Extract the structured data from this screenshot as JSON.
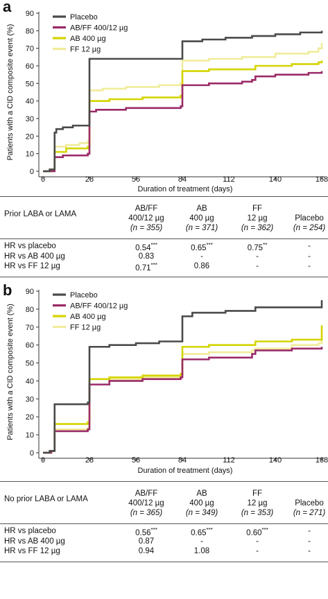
{
  "chart_data": [
    {
      "type": "line",
      "panel": "a",
      "xlabel": "Duration of treatment (days)",
      "ylabel": "Patients with a CID composite event (%)",
      "xlim": [
        0,
        168
      ],
      "ylim": [
        0,
        90
      ],
      "xticks": [
        0,
        28,
        56,
        84,
        112,
        140,
        168
      ],
      "yticks": [
        0,
        10,
        20,
        30,
        40,
        50,
        60,
        70,
        80,
        90
      ],
      "legend_position": "top-left",
      "series": [
        {
          "name": "Placebo",
          "color": "#4a4a4a",
          "points": [
            [
              0,
              0
            ],
            [
              4,
              1
            ],
            [
              6,
              1
            ],
            [
              7,
              22
            ],
            [
              8,
              24
            ],
            [
              12,
              25
            ],
            [
              18,
              26
            ],
            [
              27,
              26
            ],
            [
              28,
              64
            ],
            [
              40,
              64
            ],
            [
              60,
              64
            ],
            [
              83,
              64
            ],
            [
              84,
              74
            ],
            [
              96,
              75
            ],
            [
              110,
              76
            ],
            [
              126,
              77
            ],
            [
              140,
              78
            ],
            [
              155,
              79
            ],
            [
              166,
              79
            ],
            [
              168,
              80
            ]
          ]
        },
        {
          "name": "AB/FF 400/12 µg",
          "color": "#9b2a68",
          "points": [
            [
              0,
              0
            ],
            [
              5,
              0
            ],
            [
              7,
              8
            ],
            [
              12,
              9
            ],
            [
              20,
              9
            ],
            [
              27,
              10
            ],
            [
              28,
              34
            ],
            [
              32,
              35
            ],
            [
              50,
              36
            ],
            [
              70,
              36
            ],
            [
              83,
              37
            ],
            [
              84,
              49
            ],
            [
              100,
              50
            ],
            [
              120,
              51
            ],
            [
              126,
              52
            ],
            [
              128,
              54
            ],
            [
              140,
              55
            ],
            [
              160,
              56
            ],
            [
              168,
              57
            ]
          ]
        },
        {
          "name": "AB 400 µg",
          "color": "#d4d400",
          "points": [
            [
              0,
              0
            ],
            [
              5,
              1
            ],
            [
              7,
              11
            ],
            [
              14,
              13
            ],
            [
              22,
              13
            ],
            [
              27,
              14
            ],
            [
              28,
              40
            ],
            [
              40,
              41
            ],
            [
              60,
              42
            ],
            [
              83,
              43
            ],
            [
              84,
              57
            ],
            [
              100,
              58
            ],
            [
              126,
              58
            ],
            [
              128,
              60
            ],
            [
              150,
              61
            ],
            [
              166,
              62
            ],
            [
              168,
              63
            ]
          ]
        },
        {
          "name": "FF 12 µg",
          "color": "#f0ec9a",
          "points": [
            [
              0,
              0
            ],
            [
              5,
              1
            ],
            [
              7,
              14
            ],
            [
              14,
              15
            ],
            [
              22,
              16
            ],
            [
              27,
              17
            ],
            [
              28,
              46
            ],
            [
              36,
              47
            ],
            [
              50,
              48
            ],
            [
              70,
              49
            ],
            [
              83,
              50
            ],
            [
              84,
              63
            ],
            [
              100,
              64
            ],
            [
              120,
              65
            ],
            [
              140,
              67
            ],
            [
              160,
              68
            ],
            [
              166,
              70
            ],
            [
              168,
              73
            ]
          ]
        }
      ]
    },
    {
      "type": "line",
      "panel": "b",
      "xlabel": "Duration of treatment (days)",
      "ylabel": "Patients with a CID composite event (%)",
      "xlim": [
        0,
        168
      ],
      "ylim": [
        0,
        90
      ],
      "xticks": [
        0,
        28,
        56,
        84,
        112,
        140,
        168
      ],
      "yticks": [
        0,
        10,
        20,
        30,
        40,
        50,
        60,
        70,
        80,
        90
      ],
      "legend_position": "top-left",
      "series": [
        {
          "name": "Placebo",
          "color": "#4a4a4a",
          "points": [
            [
              0,
              0
            ],
            [
              4,
              1
            ],
            [
              6,
              1
            ],
            [
              7,
              27
            ],
            [
              14,
              27
            ],
            [
              27,
              28
            ],
            [
              28,
              59
            ],
            [
              40,
              60
            ],
            [
              56,
              61
            ],
            [
              70,
              62
            ],
            [
              83,
              62
            ],
            [
              84,
              76
            ],
            [
              90,
              78
            ],
            [
              110,
              79
            ],
            [
              126,
              79
            ],
            [
              128,
              81
            ],
            [
              150,
              81
            ],
            [
              166,
              81
            ],
            [
              168,
              85
            ]
          ]
        },
        {
          "name": "AB/FF 400/12 µg",
          "color": "#9b2a68",
          "points": [
            [
              0,
              0
            ],
            [
              5,
              1
            ],
            [
              7,
              12
            ],
            [
              20,
              12
            ],
            [
              27,
              13
            ],
            [
              28,
              38
            ],
            [
              40,
              40
            ],
            [
              60,
              41
            ],
            [
              83,
              42
            ],
            [
              84,
              52
            ],
            [
              100,
              53
            ],
            [
              126,
              55
            ],
            [
              128,
              57
            ],
            [
              150,
              58
            ],
            [
              168,
              59
            ]
          ]
        },
        {
          "name": "AB 400 µg",
          "color": "#d4d400",
          "points": [
            [
              0,
              0
            ],
            [
              5,
              1
            ],
            [
              7,
              16
            ],
            [
              20,
              16
            ],
            [
              27,
              17
            ],
            [
              28,
              41
            ],
            [
              40,
              42
            ],
            [
              60,
              43
            ],
            [
              83,
              44
            ],
            [
              84,
              59
            ],
            [
              100,
              60
            ],
            [
              126,
              60
            ],
            [
              128,
              62
            ],
            [
              150,
              63
            ],
            [
              166,
              63
            ],
            [
              168,
              71
            ]
          ]
        },
        {
          "name": "FF 12 µg",
          "color": "#f0ec9a",
          "points": [
            [
              0,
              0
            ],
            [
              5,
              1
            ],
            [
              7,
              13
            ],
            [
              20,
              13
            ],
            [
              27,
              14
            ],
            [
              28,
              41
            ],
            [
              40,
              41
            ],
            [
              60,
              42
            ],
            [
              83,
              43
            ],
            [
              84,
              55
            ],
            [
              100,
              56
            ],
            [
              126,
              57
            ],
            [
              128,
              58
            ],
            [
              150,
              60
            ],
            [
              166,
              61
            ],
            [
              168,
              66
            ]
          ]
        }
      ]
    }
  ],
  "tables": [
    {
      "row_header": "Prior LABA or LAMA",
      "columns": [
        {
          "line1": "AB/FF",
          "line2": "400/12 µg",
          "n": "(n = 355)"
        },
        {
          "line1": "AB",
          "line2": "400 µg",
          "n": "(n = 371)"
        },
        {
          "line1": "FF",
          "line2": "12 µg",
          "n": "(n = 362)"
        },
        {
          "line1": "",
          "line2": "Placebo",
          "n": "(n = 254)"
        }
      ],
      "rows": [
        {
          "label": "HR vs placebo",
          "cells": [
            {
              "v": "0.54",
              "s": "***"
            },
            {
              "v": "0.65",
              "s": "***"
            },
            {
              "v": "0.75",
              "s": "**"
            },
            {
              "v": "-",
              "s": ""
            }
          ]
        },
        {
          "label": "HR vs AB 400 µg",
          "cells": [
            {
              "v": "0.83",
              "s": ""
            },
            {
              "v": "-",
              "s": ""
            },
            {
              "v": "-",
              "s": ""
            },
            {
              "v": "-",
              "s": ""
            }
          ]
        },
        {
          "label": "HR vs FF 12 µg",
          "cells": [
            {
              "v": "0.71",
              "s": "***"
            },
            {
              "v": "0.86",
              "s": ""
            },
            {
              "v": "-",
              "s": ""
            },
            {
              "v": "-",
              "s": ""
            }
          ]
        }
      ]
    },
    {
      "row_header": "No prior LABA or LAMA",
      "columns": [
        {
          "line1": "AB/FF",
          "line2": "400/12 µg",
          "n": "(n = 365)"
        },
        {
          "line1": "AB",
          "line2": "400 µg",
          "n": "(n = 349)"
        },
        {
          "line1": "FF",
          "line2": "12 µg",
          "n": "(n = 353)"
        },
        {
          "line1": "",
          "line2": "Placebo",
          "n": "(n = 271)"
        }
      ],
      "rows": [
        {
          "label": "HR vs placebo",
          "cells": [
            {
              "v": "0.56",
              "s": "***"
            },
            {
              "v": "0.65",
              "s": "***"
            },
            {
              "v": "0.60",
              "s": "***"
            },
            {
              "v": "-",
              "s": ""
            }
          ]
        },
        {
          "label": "HR vs AB 400 µg",
          "cells": [
            {
              "v": "0.87",
              "s": ""
            },
            {
              "v": "-",
              "s": ""
            },
            {
              "v": "-",
              "s": ""
            },
            {
              "v": "-",
              "s": ""
            }
          ]
        },
        {
          "label": "HR vs FF 12 µg",
          "cells": [
            {
              "v": "0.94",
              "s": ""
            },
            {
              "v": "1.08",
              "s": ""
            },
            {
              "v": "-",
              "s": ""
            },
            {
              "v": "-",
              "s": ""
            }
          ]
        }
      ]
    }
  ]
}
